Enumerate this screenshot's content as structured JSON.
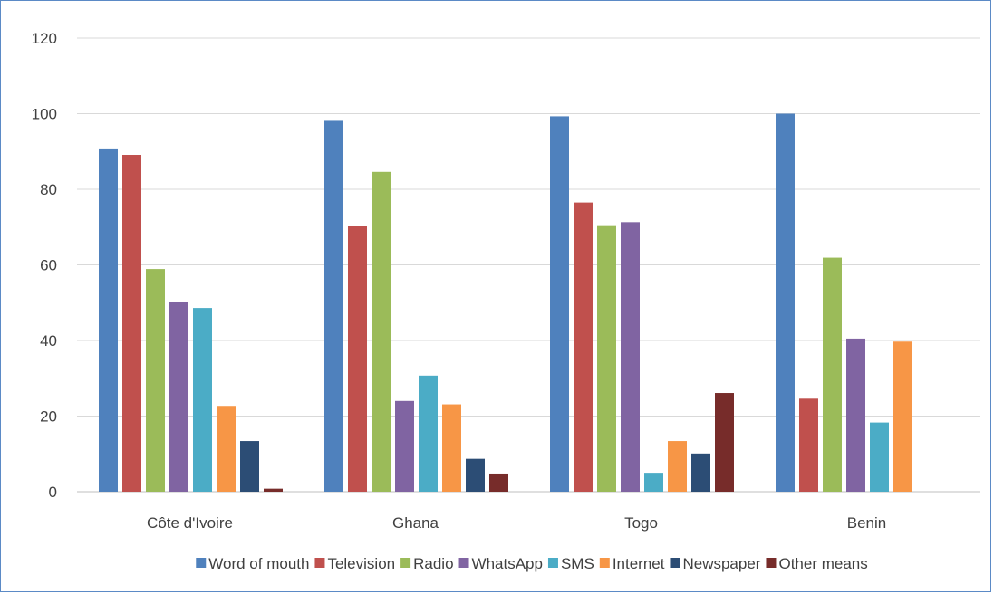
{
  "chart_data": {
    "type": "bar",
    "categories": [
      "Côte d'Ivoire",
      "Ghana",
      "Togo",
      "Benin"
    ],
    "ylim": [
      0,
      120
    ],
    "yticks": [
      0,
      20,
      40,
      60,
      80,
      100,
      120
    ],
    "grid": true,
    "legend_position": "bottom",
    "series": [
      {
        "name": "Word of mouth",
        "color": "#4f81bd",
        "values": [
          90.8,
          98.1,
          99.3,
          100
        ]
      },
      {
        "name": "Television",
        "color": "#c0504d",
        "values": [
          89.1,
          70.2,
          76.5,
          24.6
        ]
      },
      {
        "name": "Radio",
        "color": "#9bbb59",
        "values": [
          58.9,
          84.6,
          70.5,
          61.9
        ]
      },
      {
        "name": "WhatsApp",
        "color": "#8064a2",
        "values": [
          50.3,
          24.0,
          71.3,
          40.5
        ]
      },
      {
        "name": "SMS",
        "color": "#4bacc6",
        "values": [
          48.6,
          30.7,
          5.0,
          18.3
        ]
      },
      {
        "name": "Internet",
        "color": "#f79646",
        "values": [
          22.7,
          23.1,
          13.4,
          39.7
        ]
      },
      {
        "name": "Newspaper",
        "color": "#2c4d75",
        "values": [
          13.4,
          8.7,
          10.1,
          0
        ]
      },
      {
        "name": "Other means",
        "color": "#772c2a",
        "values": [
          0.8,
          4.8,
          26.1,
          0
        ]
      }
    ]
  }
}
